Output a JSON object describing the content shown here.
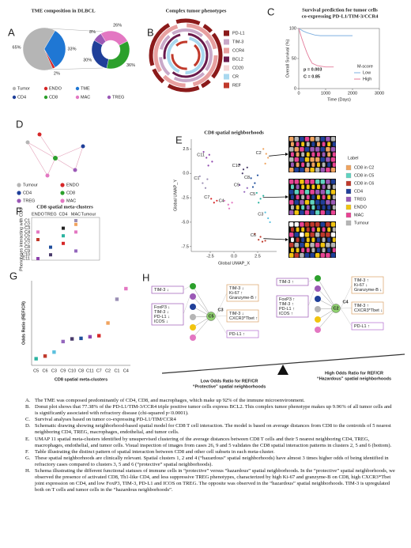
{
  "panel_labels": [
    "A",
    "B",
    "C",
    "D",
    "E",
    "F",
    "G",
    "H"
  ],
  "chart_data": [
    {
      "type": "pie",
      "title": "TME composition in DLBCL",
      "categories": [
        "Tumor",
        "ENDO",
        "TME"
      ],
      "values": [
        65,
        2,
        33
      ],
      "value_labels": [
        "65%",
        "2%",
        "33%"
      ],
      "colors": [
        "#b5b5b5",
        "#d62728",
        "#1f77d4"
      ],
      "breakdown": {
        "categories": [
          "CD4",
          "CD8",
          "MAC",
          "TREG"
        ],
        "values": [
          30,
          36,
          26,
          8
        ],
        "value_labels": [
          "30%",
          "36%",
          "26%",
          "8%"
        ],
        "colors": [
          "#1f3f99",
          "#2ca02c",
          "#e377c2",
          "#9b59b6"
        ]
      }
    },
    {
      "type": "line",
      "title": [
        "Survival prediction for tumor cells",
        "co-expressing PD-L1/TIM-3/CCR4"
      ],
      "xlabel": "Time (Days)",
      "ylabel": "Overall Survival (%)",
      "xlim": [
        0,
        3000
      ],
      "ylim": [
        0,
        100
      ],
      "xticks": [
        0,
        1000,
        2000,
        3000
      ],
      "yticks": [
        0,
        50,
        100
      ],
      "annotations": [
        "p = 0.003",
        "C = 0.85"
      ],
      "legend_title": "M-score",
      "series": [
        {
          "name": "Low",
          "color": "#7fb0e0",
          "x": [
            0,
            150,
            300,
            450,
            600,
            800,
            1000,
            1500,
            2000
          ],
          "values": [
            100,
            96,
            93,
            91,
            89,
            88,
            88,
            88,
            88
          ]
        },
        {
          "name": "High",
          "color": "#e37b9a",
          "x": [
            0,
            100,
            200,
            300,
            400,
            500,
            700,
            1000,
            1300
          ],
          "values": [
            100,
            85,
            72,
            60,
            50,
            42,
            38,
            36,
            36
          ]
        }
      ]
    },
    {
      "type": "scatter",
      "title": "CD8 spatial neighborhoods",
      "xlabel": "Global UMAP_X",
      "ylabel": "Global UMAP_Y",
      "xlim": [
        -4.5,
        4.5
      ],
      "ylim": [
        -8,
        3.5
      ],
      "xticks": [
        -2.5,
        {
          "value": 0,
          "label": "0.0"
        },
        2.5
      ],
      "yticks": [
        2.5,
        {
          "value": 0,
          "label": "0.0"
        },
        -2.5,
        {
          "value": -5,
          "label": "-5.0"
        },
        -7.5
      ],
      "series": [
        {
          "name": "C11",
          "color": "#8e44ad",
          "x": [
            -3.2,
            -2.9,
            -2.6,
            -2.3,
            -2.7
          ],
          "values": [
            2.2,
            1.6,
            1.9,
            1.2,
            0.8
          ]
        },
        {
          "name": "C1",
          "color": "#9b8fb5",
          "x": [
            -3.6,
            -3.3,
            -3.0,
            -2.8
          ],
          "values": [
            -0.3,
            -1.0,
            -1.5,
            -0.6
          ]
        },
        {
          "name": "C7",
          "color": "#d62728",
          "x": [
            -2.4,
            -2.1,
            -1.8
          ],
          "values": [
            -2.6,
            -3.0,
            -2.8
          ]
        },
        {
          "name": "C4",
          "color": "#e377c2",
          "x": [
            -1.0,
            -0.6,
            -0.2,
            -0.5
          ],
          "values": [
            -2.8,
            -3.2,
            -3.0,
            -3.6
          ]
        },
        {
          "name": "C10",
          "color": "#4a3b6b",
          "x": [
            0.6,
            1.0,
            1.4,
            0.9
          ],
          "values": [
            0.9,
            0.4,
            0.6,
            0.0
          ]
        },
        {
          "name": "C9",
          "color": "#9467bd",
          "x": [
            0.6,
            1.1,
            1.4
          ],
          "values": [
            -1.2,
            -1.9,
            -1.5
          ]
        },
        {
          "name": "C8",
          "color": "#1f4e9c",
          "x": [
            1.8,
            2.2,
            2.5,
            2.0
          ],
          "values": [
            -0.5,
            -1.0,
            -0.2,
            -1.4
          ]
        },
        {
          "name": "C5",
          "color": "#2bb3a0",
          "x": [
            2.4,
            2.8,
            3.1,
            2.6
          ],
          "values": [
            -2.0,
            -2.6,
            -2.3,
            -3.0
          ]
        },
        {
          "name": "C3",
          "color": "#5bc0de",
          "x": [
            3.3,
            3.6,
            3.8
          ],
          "values": [
            -4.0,
            -4.6,
            -5.0
          ]
        },
        {
          "name": "C2",
          "color": "#f0a35e",
          "x": [
            3.1,
            3.4,
            3.6,
            3.3
          ],
          "values": [
            2.5,
            2.0,
            1.6,
            1.0
          ]
        },
        {
          "name": "C6",
          "color": "#c0392b",
          "x": [
            2.2,
            2.6,
            3.0,
            2.8,
            3.3
          ],
          "values": [
            -6.2,
            -6.8,
            -7.0,
            -6.5,
            -6.9
          ]
        }
      ],
      "image_legend": {
        "title": "Label",
        "items": [
          {
            "name": "CD8 in C2",
            "color": "#f0a35e"
          },
          {
            "name": "CD8 in C5",
            "color": "#5fd3c0"
          },
          {
            "name": "CD8 in C6",
            "color": "#c0392b"
          },
          {
            "name": "CD4",
            "color": "#1f3f99"
          },
          {
            "name": "TREG",
            "color": "#9b59b6"
          },
          {
            "name": "ENDO",
            "color": "#f1c40f"
          },
          {
            "name": "MAC",
            "color": "#e84393"
          },
          {
            "name": "Tumour",
            "color": "#b5b5b5"
          }
        ]
      }
    },
    {
      "type": "dot",
      "xlabel": "CD8 spatial meta-clusters",
      "ylabel": "Odds Ratio (REF/CR)",
      "ylim": [
        0,
        3.2
      ],
      "categories": [
        "C5",
        "C6",
        "C3",
        "C9",
        "C10",
        "C8",
        "C11",
        "C7",
        "C2",
        "C1",
        "C4"
      ],
      "values": [
        0.25,
        0.35,
        0.5,
        0.9,
        1.0,
        1.02,
        1.08,
        1.12,
        1.6,
        2.5,
        2.9
      ],
      "colors": [
        "#2bb3a0",
        "#c0392b",
        "#5bc0de",
        "#9467bd",
        "#4a3b6b",
        "#1f4e9c",
        "#8e44ad",
        "#d62728",
        "#f0a35e",
        "#9b8fb5",
        "#e377c2"
      ]
    }
  ],
  "panel_b": {
    "title": "Complex tumor phenotypes",
    "legend": [
      {
        "name": "PD-L1",
        "color": "#8b1a1a"
      },
      {
        "name": "TIM-3",
        "color": "#c9a9c9"
      },
      {
        "name": "CCR4",
        "color": "#e8a0a0"
      },
      {
        "name": "BCL2",
        "color": "#6a1b4d"
      },
      {
        "name": "CD20",
        "color": "#f5d5d5"
      },
      {
        "name": "CR",
        "color": "#a9d8ef"
      },
      {
        "name": "REF",
        "color": "#c0392b"
      }
    ]
  },
  "panel_d": {
    "legend": [
      {
        "name": "Tumour",
        "color": "#b5b5b5"
      },
      {
        "name": "ENDO",
        "color": "#d62728"
      },
      {
        "name": "CD4",
        "color": "#1f3f99"
      },
      {
        "name": "CD8",
        "color": "#2ca02c"
      },
      {
        "name": "TREG",
        "color": "#9b59b6"
      },
      {
        "name": "MAC",
        "color": "#e377c2"
      }
    ]
  },
  "panel_f": {
    "title": "CD8 spatial meta-clusters",
    "ylabel": "Phenotypes interacting with CD8",
    "columns": [
      "ENDO",
      "TREG",
      "CD4",
      "MAC",
      "Tumour"
    ],
    "rows": [
      "C1",
      "C2",
      "C3",
      "C4",
      "C5",
      "C6",
      "C7",
      "C8",
      "C9",
      "C10",
      "C11"
    ],
    "marks": [
      {
        "row": "C1",
        "column": "MAC",
        "color": "#9b8fb5"
      },
      {
        "row": "C2",
        "column": "MAC",
        "color": "#f0a35e"
      },
      {
        "row": "C3",
        "column": "CD4",
        "color": "#222222"
      },
      {
        "row": "C4",
        "column": "ENDO",
        "color": "#e377c2"
      },
      {
        "row": "C4",
        "column": "MAC",
        "color": "#e377c2"
      },
      {
        "row": "C5",
        "column": "CD4",
        "color": "#2bb3a0"
      },
      {
        "row": "C6",
        "column": "ENDO",
        "color": "#c0392b"
      },
      {
        "row": "C7",
        "column": "CD4",
        "color": "#d62728"
      },
      {
        "row": "C8",
        "column": "TREG",
        "color": "#1f4e9c"
      },
      {
        "row": "C9",
        "column": "MAC",
        "color": "#9467bd"
      },
      {
        "row": "C10",
        "column": "TREG",
        "color": "#4a3b6b"
      },
      {
        "row": "C11",
        "column": "ENDO",
        "color": "#8e44ad"
      }
    ]
  },
  "panel_h": {
    "groups": [
      {
        "clusters": [
          "C5",
          "C3"
        ],
        "boxes": [
          [
            "TIM-3 ↓"
          ],
          [
            "FoxP3 ↓",
            "TIM-3 ↓",
            "PD-L1 ↓",
            "ICOS ↓"
          ],
          [
            "TIM-3 ↓",
            "Ki-67 ↑",
            "Granzyme-B ↑"
          ],
          [
            "TIM-3 ↓",
            "CXCR3*Tbet ↑"
          ],
          [
            "PD-L1 ↑"
          ]
        ],
        "caption": [
          "Low Odds Ratio for REF/CR",
          "“Protective” spatial neighborhoods"
        ]
      },
      {
        "clusters": [
          "C2",
          "C4"
        ],
        "boxes": [
          [
            "TIM-3 ↑"
          ],
          [
            "FoxP3 ↑",
            "TIM-3 ↑",
            "PD-L1 ↑",
            "ICOS ↑"
          ],
          [
            "TIM-3 ↑",
            "Ki-67 ↓",
            "Granzyme-B ↓"
          ],
          [
            "TIM-3 ↑",
            "CXCR3*Tbet ↓"
          ],
          [
            "PD-L1 ↑"
          ]
        ],
        "caption": [
          "High Odds Ratio for REF/CR",
          "“Hazardous” spatial neighborhoods"
        ]
      }
    ]
  },
  "caption": [
    {
      "label": "A.",
      "text": "The TME was composed predominantly of CD4, CD8, and macrophages, which make up 92% of the immune microenvironment."
    },
    {
      "label": "B.",
      "text": "Donut plot shows that 77.38% of the PD-L1/TIM-3/CCR4 triple positive tumor cells express BCL2. This complex tumor phenotype makes up 9.96% of all tumor cells and is significantly associated with refractory disease (chi-squared p<0.0001)."
    },
    {
      "label": "C.",
      "text": "Survival analyses based on tumor co-expressing PD-L1/TIM/CCR4"
    },
    {
      "label": "D.",
      "text": "Schematic drawing showing neighborhood-based spatial model for CD8 T cell interaction. The model is based on average distances from CD8 to the centroids of 5 nearest neighboring CD4, TREG, macrophages, endothelial, and tumor cells."
    },
    {
      "label": "E.",
      "text": "UMAP 11 spatial meta-clusters identified by unsupervised clustering of the average distances between CD8 T cells and their 5 nearest neighboring CD4, TREG, macrophages, endothelial, and tumor cells. Visual inspection of images from cases 26, 9 and 5 validates the CD8 spatial interaction patterns in clusters 2, 5 and 6 (bottom)."
    },
    {
      "label": "F.",
      "text": "Table illustrating the distinct pattern of spatial interaction between CD8 and other cell subsets in each meta-cluster."
    },
    {
      "label": "G.",
      "text": "These spatial neighborhoods are clinically relevant. Spatial clusters 1, 2 and 4 (“hazardous” spatial neighborhoods) have almost 3 times higher odds of being identified in refractory cases compared to clusters 3, 5 and 6 (“protective” spatial neighborhoods)."
    },
    {
      "label": "H.",
      "text": "Schema illustrating the different functional statuses of immune cells in “protective” versus “hazardous” spatial neighborhoods. In the “protective” spatial neighborhoods, we observed the presence of activated CD8, Th1-like CD4, and less suppressive TREG phenotypes, characterized by high Ki-67 and granzyme-B on CD8, high CXCR3*Tbet joint expression on CD4, and low FoxP3, TIM-3, PD-L1 and ICOS on TREG. The opposite was observed in the “hazardous” spatial neighborhoods. TIM-3 is upregulated both on T cells and tumor cells in the “hazardous neighborhoods”."
    }
  ]
}
